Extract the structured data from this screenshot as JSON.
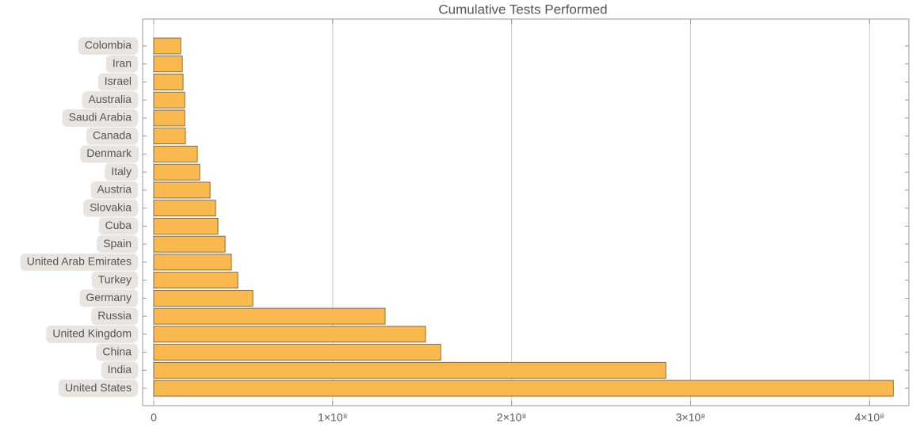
{
  "chart_data": {
    "type": "hbar",
    "title": "Cumulative Tests Performed",
    "categories": [
      "Colombia",
      "Iran",
      "Israel",
      "Australia",
      "Saudi Arabia",
      "Canada",
      "Denmark",
      "Italy",
      "Austria",
      "Slovakia",
      "Cuba",
      "Spain",
      "United Arab Emirates",
      "Turkey",
      "Germany",
      "Russia",
      "United Kingdom",
      "China",
      "India",
      "United States"
    ],
    "values": [
      15100000,
      16000000,
      16400000,
      17300000,
      17300000,
      17700000,
      24400000,
      25700000,
      31500000,
      34600000,
      35900000,
      39900000,
      43400000,
      47000000,
      55400000,
      129300000,
      151900000,
      160400000,
      286200000,
      413300000
    ],
    "color": "#f9b94f",
    "xlim": [
      -6200000,
      422000000
    ],
    "xticks": [
      0,
      {
        "value": 100000000,
        "label": "1×10⁸"
      },
      {
        "value": 200000000,
        "label": "2×10⁸"
      },
      {
        "value": 300000000,
        "label": "3×10⁸"
      },
      {
        "value": 400000000,
        "label": "4×10⁸"
      }
    ],
    "grid": true
  }
}
